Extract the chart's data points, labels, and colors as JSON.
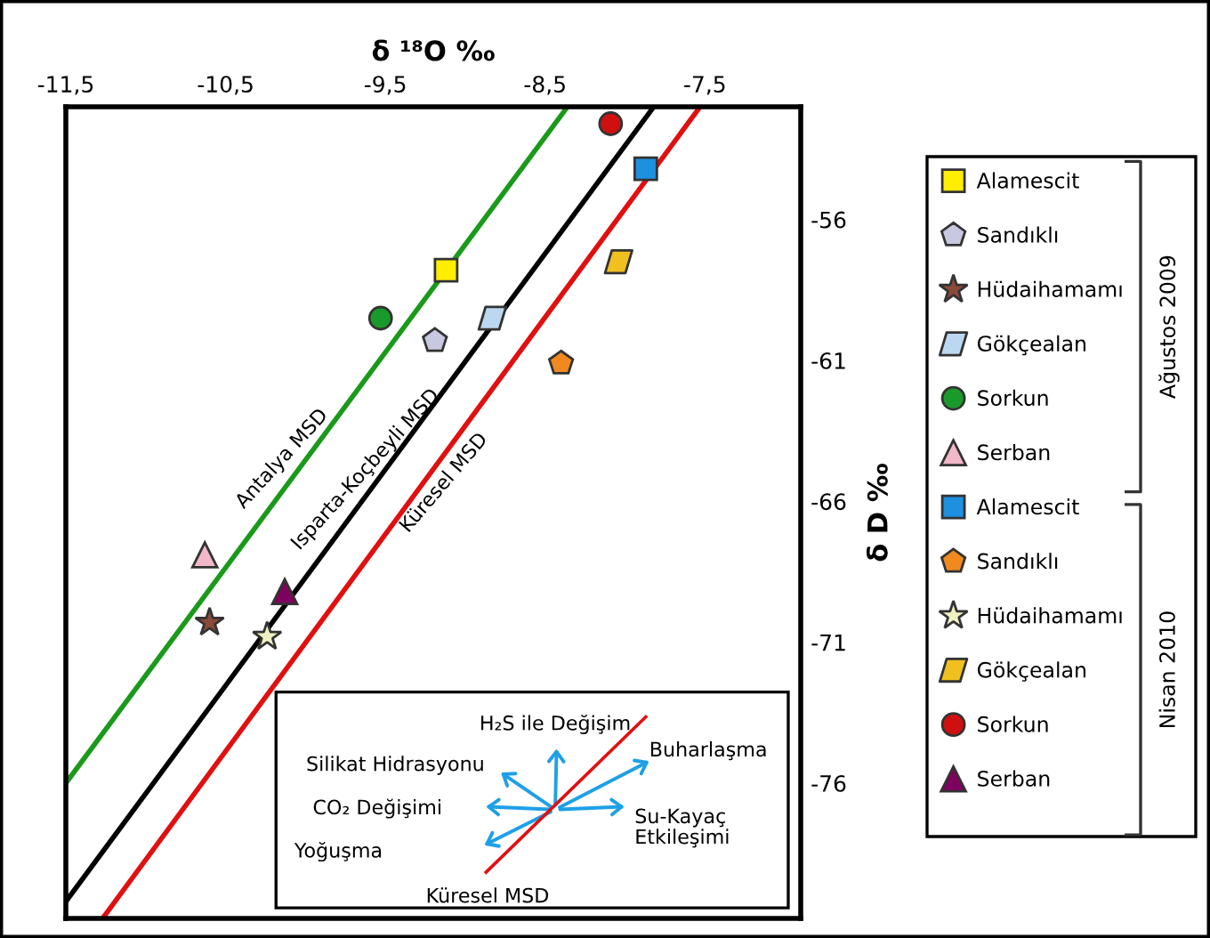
{
  "chart_data": {
    "type": "scatter",
    "xlabel": "δ ¹⁸O ‰",
    "ylabel": "δ D ‰",
    "xlim": [
      -11.5,
      -6.9
    ],
    "ylim": [
      -80.8,
      -52.0
    ],
    "xticks": [
      {
        "value": -11.5,
        "label": "-11,5"
      },
      {
        "value": -10.5,
        "label": "-10,5"
      },
      {
        "value": -9.5,
        "label": "-9,5"
      },
      {
        "value": -8.5,
        "label": "-8,5"
      },
      {
        "value": -7.5,
        "label": "-7,5"
      }
    ],
    "yticks": [
      -56,
      -61,
      -66,
      -71,
      -76
    ],
    "grid": false,
    "legend": "right",
    "series": [
      {
        "name": "Antalya MSD",
        "type": "line",
        "color": "#1a9a1a",
        "x": [
          -11.5,
          -8.36
        ],
        "values": [
          -76.0,
          -52.0
        ]
      },
      {
        "name": "Isparta-Koçbeyli MSD",
        "type": "line",
        "color": "#000000",
        "x": [
          -11.5,
          -7.82
        ],
        "values": [
          -80.2,
          -52.0
        ]
      },
      {
        "name": "Küresel MSD",
        "type": "line",
        "color": "#e01010",
        "x": [
          -11.27,
          -7.53
        ],
        "values": [
          -80.8,
          -52.0
        ]
      },
      {
        "name": "Alamescit",
        "marker": "square",
        "color": "#ffee00",
        "x": [
          -9.12
        ],
        "values": [
          -57.8
        ]
      },
      {
        "name": "Sandıklı",
        "color": "#c8c8e0",
        "x": [
          -9.19
        ],
        "values": [
          -60.3
        ]
      },
      {
        "name": "Hüdaihamamı",
        "marker": "star",
        "color": "#8b4a3a",
        "x": [
          -10.6
        ],
        "values": [
          -70.3
        ]
      },
      {
        "name": "Gökçealan",
        "marker": "diamond",
        "color": "#bcd8f0",
        "x": [
          -8.83
        ],
        "values": [
          -59.5
        ]
      },
      {
        "name": "Sorkun",
        "marker": "circle",
        "color": "#1a9a2a",
        "x": [
          -9.53
        ],
        "values": [
          -59.5
        ]
      },
      {
        "name": "Serban",
        "marker": "triangle",
        "color": "#f0b8c8",
        "x": [
          -10.63
        ],
        "values": [
          -67.9
        ]
      },
      {
        "name": "Alamescit",
        "marker": "square",
        "color": "#1e90e0",
        "x": [
          -7.87
        ],
        "values": [
          -54.2
        ]
      },
      {
        "name": "Sandıklı",
        "color": "#f08a1e",
        "x": [
          -8.4
        ],
        "values": [
          -61.1
        ]
      },
      {
        "name": "Hüdaihamamı",
        "marker": "star",
        "color": "#f0f0c0",
        "x": [
          -10.24
        ],
        "values": [
          -70.8
        ]
      },
      {
        "name": "Gökçealan",
        "marker": "diamond",
        "color": "#f0c020",
        "x": [
          -8.04
        ],
        "values": [
          -57.5
        ]
      },
      {
        "name": "Sorkun",
        "marker": "circle",
        "color": "#d01010",
        "x": [
          -8.09
        ],
        "values": [
          -52.6
        ]
      },
      {
        "name": "Serban",
        "marker": "triangle",
        "color": "#800060",
        "x": [
          -10.13
        ],
        "values": [
          -69.2
        ]
      }
    ],
    "annotations": [
      "H₂S ile Değişim",
      "Silikat Hidrasyonu",
      "CO₂ Değişimi",
      "Yoğuşma",
      "Buharlaşma",
      "Su-Kayaç\nEtkileşimi",
      "Küresel MSD",
      "Ağustos 2009",
      "Nisan 2010"
    ]
  }
}
